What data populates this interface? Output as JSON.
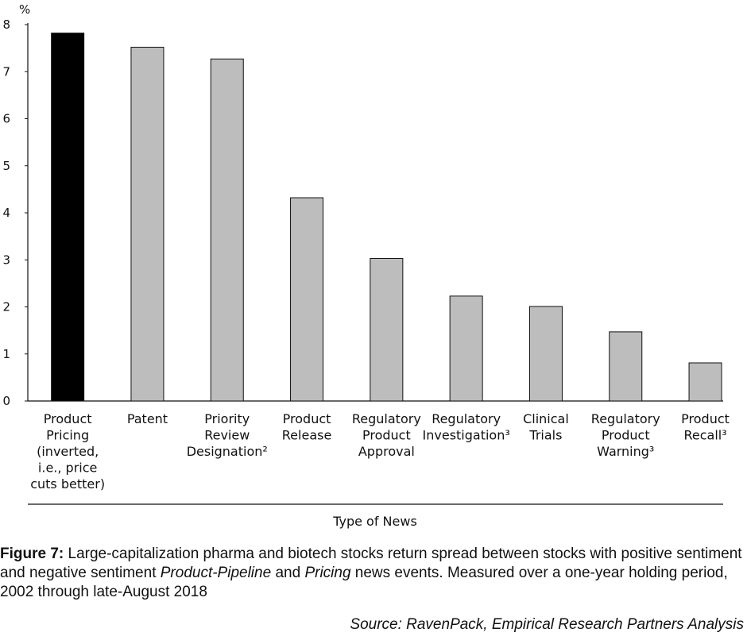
{
  "chart_data": {
    "type": "bar",
    "ylabel": "%",
    "xlabel": "Type of News",
    "ylim": [
      0,
      8
    ],
    "yticks": [
      "0",
      "1",
      "2",
      "3",
      "4",
      "5",
      "6",
      "7",
      "8"
    ],
    "grid": false,
    "categories": [
      [
        "Product",
        "Pricing",
        "(inverted,",
        "i.e., price",
        "cuts better)"
      ],
      [
        "Patent"
      ],
      [
        "Priority",
        "Review",
        "Designation²"
      ],
      [
        "Product",
        "Release"
      ],
      [
        "Regulatory",
        "Product",
        "Approval"
      ],
      [
        "Regulatory",
        "Investigation³"
      ],
      [
        "Clinical",
        "Trials"
      ],
      [
        "Regulatory",
        "Product",
        "Warning³"
      ],
      [
        "Product",
        "Recall³"
      ]
    ],
    "values": [
      7.82,
      7.52,
      7.27,
      4.32,
      3.03,
      2.23,
      2.01,
      1.47,
      0.81
    ],
    "colors": [
      "#000000",
      "#bdbdbd",
      "#bdbdbd",
      "#bdbdbd",
      "#bdbdbd",
      "#bdbdbd",
      "#bdbdbd",
      "#bdbdbd",
      "#bdbdbd"
    ]
  },
  "caption": {
    "label": "Figure 7:",
    "text_1": " Large-capitalization pharma and biotech stocks return spread between stocks with positive sentiment and negative sentiment ",
    "italic_1": "Product-Pipeline",
    "text_2": " and ",
    "italic_2": "Pricing",
    "text_3": " news events. Measured over a one-year holding period, 2002 through late-August 2018"
  },
  "source": "Source: RavenPack, Empirical Research Partners Analysis"
}
